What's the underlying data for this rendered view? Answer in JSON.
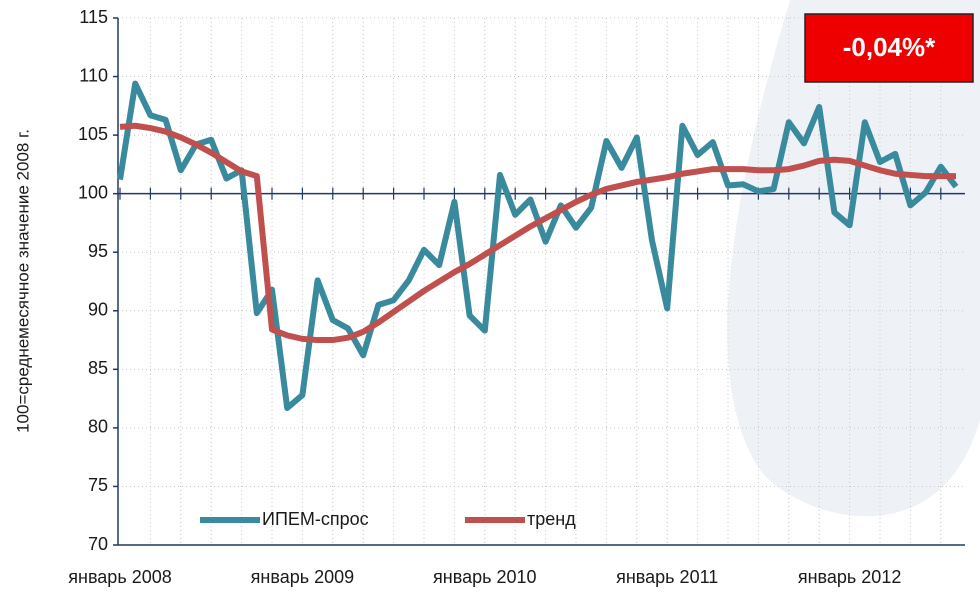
{
  "chart_data": {
    "type": "line",
    "y_label": "100=среднемесячное значение 2008 г.",
    "badge": "-0,04%*",
    "categories": [
      "январь 2008",
      null,
      null,
      null,
      null,
      null,
      null,
      null,
      null,
      null,
      null,
      null,
      "январь 2009",
      null,
      null,
      null,
      null,
      null,
      null,
      null,
      null,
      null,
      null,
      null,
      "январь 2010",
      null,
      null,
      null,
      null,
      null,
      null,
      null,
      null,
      null,
      null,
      null,
      "январь 2011",
      null,
      null,
      null,
      null,
      null,
      null,
      null,
      null,
      null,
      null,
      null,
      "январь 2012",
      null,
      null,
      null,
      null,
      null,
      null,
      null
    ],
    "series": [
      {
        "name": "ИПЕМ-спрос",
        "color": "#3a8a9e",
        "values": [
          101.2,
          109.4,
          106.7,
          106.3,
          102,
          104.2,
          104.6,
          101.3,
          102,
          89.8,
          91.8,
          81.7,
          82.8,
          92.6,
          89.2,
          88.5,
          86.2,
          90.5,
          90.9,
          92.6,
          95.2,
          93.9,
          99.3,
          89.6,
          88.3,
          101.6,
          98.2,
          99.5,
          95.9,
          99,
          97.1,
          98.8,
          104.5,
          102.2,
          104.8,
          96,
          90.2,
          105.8,
          103.3,
          104.4,
          100.7,
          100.8,
          100.2,
          100.4,
          106.1,
          104.3,
          107.4,
          98.4,
          97.3,
          106.1,
          102.7,
          103.4,
          99,
          100.1,
          102.3,
          100.6
        ]
      },
      {
        "name": "тренд",
        "color": "#c0504d",
        "values": [
          105.7,
          105.8,
          105.6,
          105.3,
          104.8,
          104.2,
          103.5,
          102.7,
          101.9,
          101.5,
          88.4,
          87.9,
          87.6,
          87.5,
          87.5,
          87.7,
          88.2,
          89,
          89.9,
          90.8,
          91.7,
          92.5,
          93.3,
          94,
          94.8,
          95.6,
          96.4,
          97.2,
          97.9,
          98.6,
          99.3,
          99.9,
          100.4,
          100.7,
          101,
          101.2,
          101.4,
          101.7,
          101.9,
          102.1,
          102.1,
          102.1,
          102,
          102,
          102.1,
          102.4,
          102.8,
          102.9,
          102.8,
          102.4,
          102,
          101.7,
          101.6,
          101.5,
          101.5,
          101.5
        ]
      }
    ],
    "ylim": [
      70,
      115
    ],
    "yticks": [
      70,
      75,
      80,
      85,
      90,
      95,
      100,
      105,
      110,
      115
    ],
    "x_axis_crosses": 100,
    "grid": true
  }
}
